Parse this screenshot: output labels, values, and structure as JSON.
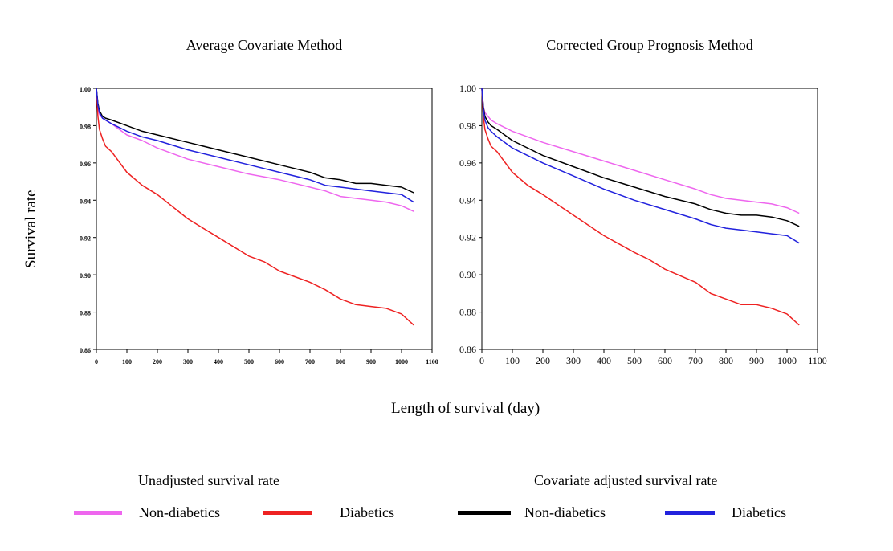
{
  "figure": {
    "xlabel": "Length of survival (day)",
    "ylabel": "Survival rate"
  },
  "legend": {
    "group_unadjusted_title": "Unadjusted survival rate",
    "group_adjusted_title": "Covariate adjusted survival rate",
    "items": [
      {
        "label": "Non-diabetics",
        "group": "Unadjusted survival rate",
        "color": "#ee66ee"
      },
      {
        "label": "Diabetics",
        "group": "Unadjusted survival rate",
        "color": "#ee2222"
      },
      {
        "label": "Non-diabetics",
        "group": "Covariate adjusted survival rate",
        "color": "#000000"
      },
      {
        "label": "Diabetics",
        "group": "Covariate adjusted survival rate",
        "color": "#2222dd"
      }
    ]
  },
  "chart_data": [
    {
      "type": "line",
      "title": "Average Covariate Method",
      "xlabel": "Length of survival (day)",
      "ylabel": "Survival rate",
      "xlim": [
        0,
        1100
      ],
      "ylim": [
        0.86,
        1.0
      ],
      "xticks": [
        "0",
        "100",
        "200",
        "300",
        "400",
        "500",
        "600",
        "700",
        "800",
        "900",
        "1000",
        "1100"
      ],
      "yticks": [
        "0.86",
        "0.88",
        "0.90",
        "0.92",
        "0.94",
        "0.96",
        "0.98",
        "1.00"
      ],
      "series": [
        {
          "name": "Unadjusted Non-diabetics",
          "color": "#ee66ee",
          "x": [
            0,
            5,
            10,
            20,
            30,
            50,
            100,
            150,
            200,
            300,
            400,
            500,
            600,
            700,
            750,
            800,
            900,
            950,
            1000,
            1040
          ],
          "y": [
            1.0,
            0.99,
            0.986,
            0.984,
            0.983,
            0.981,
            0.975,
            0.972,
            0.968,
            0.962,
            0.958,
            0.954,
            0.951,
            0.947,
            0.945,
            0.942,
            0.94,
            0.939,
            0.937,
            0.934
          ]
        },
        {
          "name": "Unadjusted Diabetics",
          "color": "#ee2222",
          "x": [
            0,
            5,
            10,
            20,
            30,
            50,
            100,
            150,
            200,
            300,
            400,
            500,
            550,
            600,
            700,
            750,
            800,
            850,
            900,
            950,
            1000,
            1040
          ],
          "y": [
            1.0,
            0.985,
            0.978,
            0.973,
            0.969,
            0.966,
            0.955,
            0.948,
            0.943,
            0.93,
            0.92,
            0.91,
            0.907,
            0.902,
            0.896,
            0.892,
            0.887,
            0.884,
            0.883,
            0.882,
            0.879,
            0.873
          ]
        },
        {
          "name": "Adjusted Non-diabetics",
          "color": "#000000",
          "x": [
            0,
            5,
            10,
            20,
            30,
            50,
            100,
            150,
            200,
            300,
            400,
            500,
            600,
            700,
            750,
            800,
            850,
            900,
            950,
            1000,
            1040
          ],
          "y": [
            1.0,
            0.992,
            0.988,
            0.985,
            0.984,
            0.983,
            0.98,
            0.977,
            0.975,
            0.971,
            0.967,
            0.963,
            0.959,
            0.955,
            0.952,
            0.951,
            0.949,
            0.949,
            0.948,
            0.947,
            0.944
          ]
        },
        {
          "name": "Adjusted Diabetics",
          "color": "#2222dd",
          "x": [
            0,
            5,
            10,
            20,
            30,
            50,
            100,
            150,
            200,
            300,
            400,
            500,
            600,
            700,
            750,
            800,
            850,
            900,
            950,
            1000,
            1040
          ],
          "y": [
            1.0,
            0.991,
            0.987,
            0.984,
            0.983,
            0.981,
            0.977,
            0.974,
            0.972,
            0.967,
            0.963,
            0.959,
            0.955,
            0.951,
            0.948,
            0.947,
            0.946,
            0.945,
            0.944,
            0.943,
            0.939
          ]
        }
      ]
    },
    {
      "type": "line",
      "title": "Corrected Group Prognosis Method",
      "xlabel": "Length of survival (day)",
      "ylabel": "Survival rate",
      "xlim": [
        0,
        1100
      ],
      "ylim": [
        0.86,
        1.0
      ],
      "xticks": [
        "0",
        "100",
        "200",
        "300",
        "400",
        "500",
        "600",
        "700",
        "800",
        "900",
        "1000",
        "1100"
      ],
      "yticks": [
        "0.86",
        "0.88",
        "0.90",
        "0.92",
        "0.94",
        "0.96",
        "0.98",
        "1.00"
      ],
      "series": [
        {
          "name": "Unadjusted Non-diabetics",
          "color": "#ee66ee",
          "x": [
            0,
            5,
            10,
            20,
            30,
            50,
            100,
            200,
            300,
            400,
            500,
            600,
            700,
            750,
            800,
            900,
            950,
            1000,
            1040
          ],
          "y": [
            1.0,
            0.99,
            0.987,
            0.985,
            0.983,
            0.981,
            0.977,
            0.971,
            0.966,
            0.961,
            0.956,
            0.951,
            0.946,
            0.943,
            0.941,
            0.939,
            0.938,
            0.936,
            0.933
          ]
        },
        {
          "name": "Unadjusted Diabetics",
          "color": "#ee2222",
          "x": [
            0,
            5,
            10,
            20,
            30,
            50,
            100,
            150,
            200,
            300,
            400,
            500,
            550,
            600,
            700,
            750,
            800,
            850,
            900,
            950,
            1000,
            1040
          ],
          "y": [
            1.0,
            0.985,
            0.978,
            0.973,
            0.969,
            0.966,
            0.955,
            0.948,
            0.943,
            0.932,
            0.921,
            0.912,
            0.908,
            0.903,
            0.896,
            0.89,
            0.887,
            0.884,
            0.884,
            0.882,
            0.879,
            0.873
          ]
        },
        {
          "name": "Adjusted Non-diabetics",
          "color": "#000000",
          "x": [
            0,
            5,
            10,
            20,
            30,
            50,
            100,
            200,
            300,
            400,
            500,
            600,
            700,
            750,
            800,
            850,
            900,
            950,
            1000,
            1040
          ],
          "y": [
            1.0,
            0.99,
            0.985,
            0.982,
            0.98,
            0.978,
            0.972,
            0.964,
            0.958,
            0.952,
            0.947,
            0.942,
            0.938,
            0.935,
            0.933,
            0.932,
            0.932,
            0.931,
            0.929,
            0.926
          ]
        },
        {
          "name": "Adjusted Diabetics",
          "color": "#2222dd",
          "x": [
            0,
            5,
            10,
            20,
            30,
            50,
            100,
            200,
            300,
            400,
            500,
            600,
            700,
            750,
            800,
            850,
            900,
            950,
            1000,
            1040
          ],
          "y": [
            1.0,
            0.989,
            0.983,
            0.979,
            0.977,
            0.974,
            0.968,
            0.96,
            0.953,
            0.946,
            0.94,
            0.935,
            0.93,
            0.927,
            0.925,
            0.924,
            0.923,
            0.922,
            0.921,
            0.917
          ]
        }
      ]
    }
  ]
}
